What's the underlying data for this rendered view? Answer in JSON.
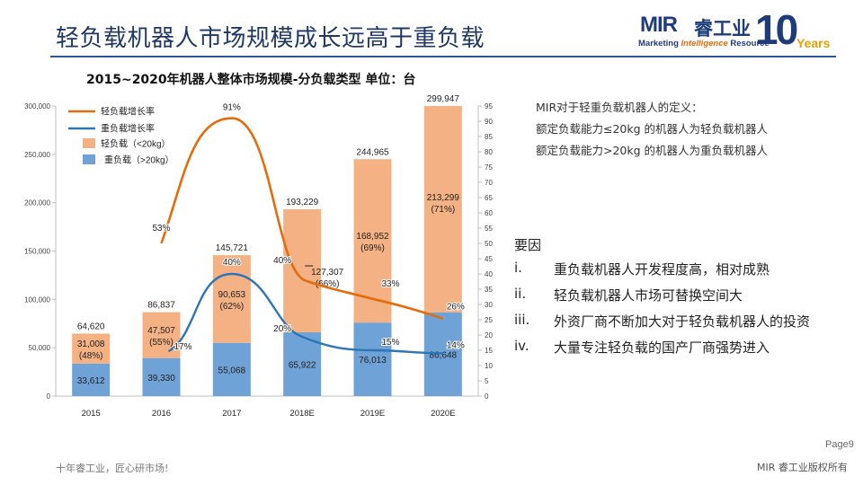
{
  "header": {
    "title": "轻负载机器人市场规模成长远高于重负载",
    "logo_mir": "MIR",
    "logo_cn": "睿工业",
    "logo_tag_left": "Marketing ",
    "logo_tag_mid": "Intelligence",
    "logo_tag_right": " Resource",
    "logo_ten": "10",
    "logo_years": "Years"
  },
  "definition": {
    "line1": "MIR对于轻重负载机器人的定义：",
    "line2": "额定负载能力≤20kg 的机器人为轻负载机器人",
    "line3": "额定负载能力>20kg 的机器人为重负载机器人"
  },
  "reasons": {
    "title": "要因",
    "items": [
      {
        "num": "i.",
        "text": "重负载机器人开发程度高，相对成熟"
      },
      {
        "num": "ii.",
        "text": "轻负载机器人市场可替换空间大"
      },
      {
        "num": "iii.",
        "text": "外资厂商不断加大对于轻负载机器人的投资"
      },
      {
        "num": "iv.",
        "text": "大量专注轻负载的国产厂商强势进入"
      }
    ]
  },
  "footer": {
    "page": "Page9",
    "left": "十年睿工业，匠心研市场!",
    "right": "MIR 睿工业版权所有"
  },
  "colors": {
    "light_bar": "#f4b183",
    "heavy_bar": "#6fa2d6",
    "light_line": "#e46c0a",
    "heavy_line": "#2e75b6"
  },
  "chart_data": {
    "type": "bar",
    "title": "2015~2020年机器人整体市场规模-分负载类型   单位：台",
    "categories": [
      "2015",
      "2016",
      "2017",
      "2018E",
      "2019E",
      "2020E"
    ],
    "ylim": [
      0,
      300000
    ],
    "y_ticks": [
      "0",
      "50,000",
      "100,000",
      "150,000",
      "200,000",
      "250,000",
      "300,000"
    ],
    "y2lim": [
      0,
      95
    ],
    "y2_ticks": [
      "0",
      "5",
      "10",
      "15",
      "20",
      "25",
      "30",
      "35",
      "40",
      "45",
      "50",
      "55",
      "60",
      "65",
      "70",
      "75",
      "80",
      "85",
      "90",
      "95"
    ],
    "legend": [
      "轻负载增长率",
      "重负载增长率",
      "轻负载（<20kg）",
      "重负载（>20kg）"
    ],
    "series": [
      {
        "name": "重负载（>20kg）",
        "values": [
          33612,
          39330,
          55068,
          65922,
          76013,
          86648
        ],
        "labels": [
          "33,612",
          "39,330",
          "55,068",
          "65,922",
          "76,013",
          "86,648"
        ]
      },
      {
        "name": "轻负载（<20kg）",
        "values": [
          31008,
          47507,
          90653,
          127307,
          168952,
          213299
        ],
        "labels": [
          "31,008",
          "47,507",
          "90,653",
          "127,307",
          "168,952",
          "213,299"
        ],
        "shares": [
          "(48%)",
          "(55%)",
          "(62%)",
          "(66%)",
          "(69%)",
          "(71%)"
        ]
      }
    ],
    "totals": [
      "64,620",
      "86,837",
      "145,721",
      "193,229",
      "244,965",
      "299,947"
    ],
    "total_values": [
      64620,
      86837,
      145721,
      193229,
      244965,
      299947
    ],
    "growth_light": {
      "name": "轻负载增长率",
      "values": [
        53,
        91,
        40,
        33,
        26
      ],
      "labels": [
        "53%",
        "91%",
        "40%",
        "33%",
        "26%"
      ]
    },
    "growth_heavy": {
      "name": "重负载增长率",
      "values": [
        17,
        40,
        20,
        15,
        14
      ],
      "labels": [
        "17%",
        "40%",
        "20%",
        "15%",
        "14%"
      ]
    }
  }
}
